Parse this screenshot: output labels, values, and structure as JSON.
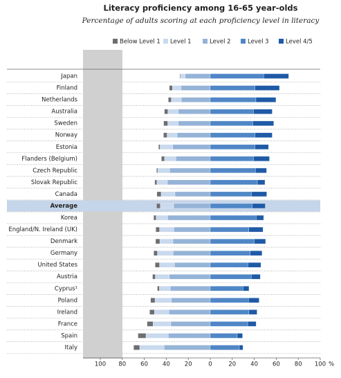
{
  "chart_data": {
    "type": "diverging-stacked-bar",
    "title": "Literacy proficiency among 16-65 year-olds",
    "subtitle": "Percentage of adults scoring at each proficiency level in literacy",
    "categories": [
      "Japan",
      "Finland",
      "Netherlands",
      "Australia",
      "Sweden",
      "Norway",
      "Estonia",
      "Flanders (Belgium)",
      "Czech Republic",
      "Slovak Republic",
      "Canada",
      "Average",
      "Korea",
      "England/N. Ireland (UK)",
      "Denmark",
      "Germany",
      "United States",
      "Austria",
      "Cyprus¹",
      "Poland",
      "Ireland",
      "France",
      "Spain",
      "Italy"
    ],
    "highlight": "Average",
    "series": [
      {
        "name": "Below Level 1",
        "color": "#6d6e71",
        "side": "left",
        "values": [
          0.6,
          2.7,
          2.6,
          3.1,
          3.7,
          3.2,
          1.3,
          2.8,
          1.0,
          1.9,
          3.8,
          3.3,
          2.2,
          3.3,
          3.8,
          3.3,
          3.9,
          2.5,
          1.8,
          3.9,
          4.3,
          5.3,
          7.2,
          5.5
        ]
      },
      {
        "name": "Level 1",
        "color": "#c9d9ee",
        "side": "left",
        "values": [
          4.3,
          8.0,
          9.1,
          9.4,
          9.6,
          9.1,
          11.6,
          10.3,
          10.8,
          9.6,
          12.6,
          12.2,
          10.6,
          13.1,
          11.9,
          14.2,
          13.6,
          12.8,
          10.0,
          14.8,
          13.2,
          16.2,
          20.3,
          22.2
        ]
      },
      {
        "name": "Level 2",
        "color": "#95b3d7",
        "side": "left",
        "values": [
          22.8,
          26.5,
          26.4,
          29.2,
          29.1,
          30.2,
          34.1,
          31.3,
          37.0,
          39.0,
          32.1,
          33.3,
          38.7,
          33.1,
          34.0,
          33.9,
          32.6,
          37.2,
          36.3,
          35.5,
          37.6,
          35.9,
          38.2,
          42.0
        ]
      },
      {
        "name": "Level 3",
        "color": "#4f86c6",
        "side": "right",
        "values": [
          48.6,
          40.7,
          41.5,
          39.4,
          38.6,
          40.6,
          40.6,
          39.4,
          41.1,
          42.8,
          37.5,
          38.2,
          41.7,
          35.1,
          39.9,
          36.4,
          34.2,
          37.3,
          29.8,
          34.7,
          35.2,
          34.0,
          24.5,
          26.4
        ]
      },
      {
        "name": "Level 4/5",
        "color": "#1f5aa6",
        "side": "right",
        "values": [
          22.7,
          22.2,
          18.2,
          16.9,
          19.1,
          15.7,
          12.4,
          14.4,
          10.1,
          6.9,
          13.8,
          11.8,
          6.8,
          12.9,
          10.4,
          10.7,
          11.8,
          8.2,
          5.4,
          9.7,
          7.3,
          7.7,
          4.8,
          3.3
        ]
      }
    ],
    "xlim": [
      -100,
      100
    ],
    "xticks": [
      {
        "value": -100,
        "label": "100"
      },
      {
        "value": -80,
        "label": "80"
      },
      {
        "value": -60,
        "label": "60"
      },
      {
        "value": -40,
        "label": "40"
      },
      {
        "value": -20,
        "label": "20"
      },
      0,
      20,
      40,
      60,
      80,
      100
    ],
    "x_unit": "%"
  }
}
